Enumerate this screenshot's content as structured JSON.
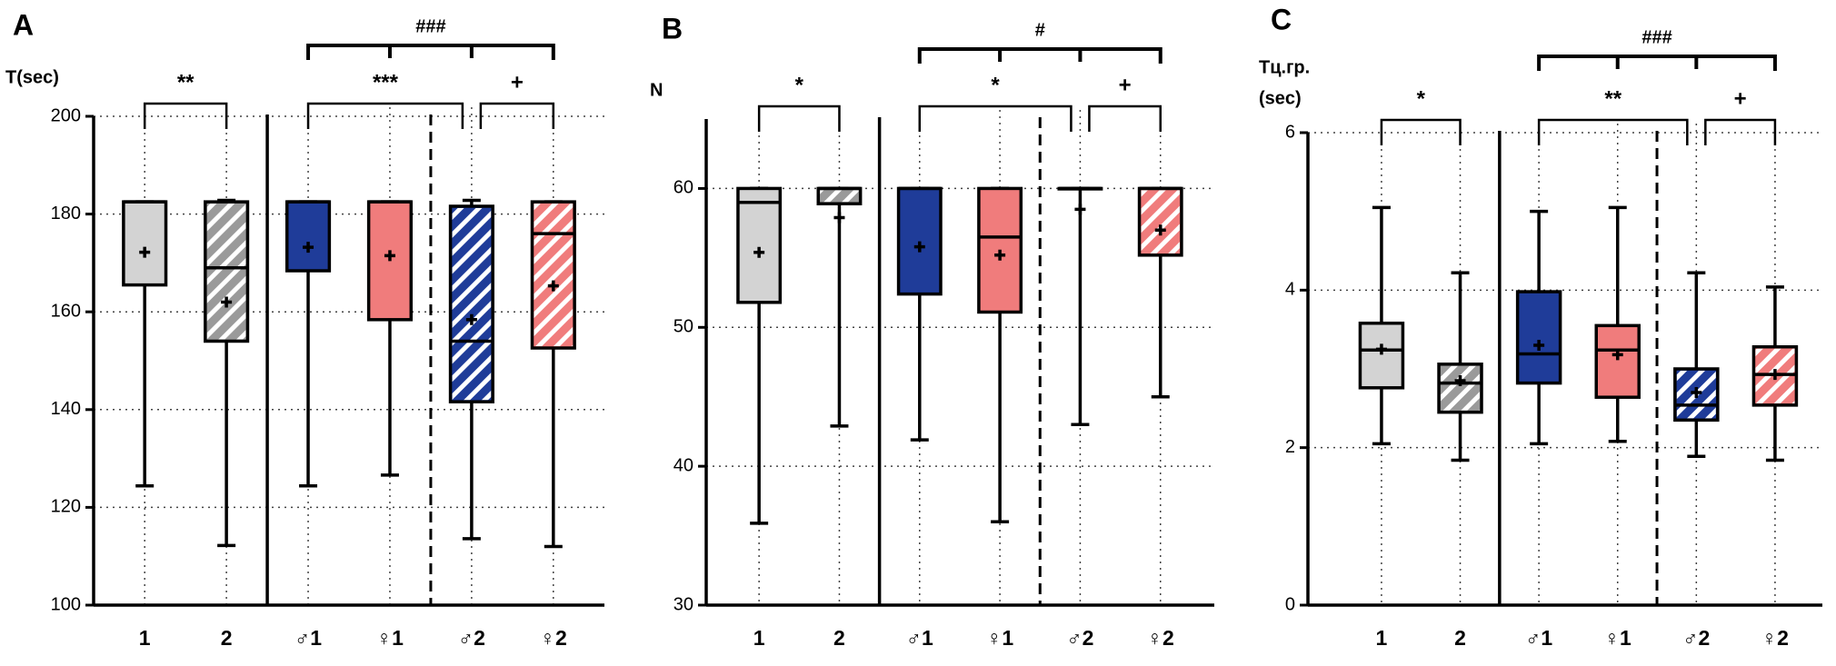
{
  "chart_data": [
    {
      "type": "box",
      "title": "A",
      "ylabel": "T(sec)",
      "categories": [
        "1",
        "2",
        "♂1",
        "♀1",
        "♂2",
        "♀2"
      ],
      "colors": [
        "#d3d3d3",
        "#9a9a9a",
        "#1f3c99",
        "#f07c7c",
        "#1f3c99",
        "#f07c7c"
      ],
      "hatched": [
        false,
        true,
        false,
        false,
        true,
        true
      ],
      "min": [
        124.4,
        112.2,
        124.4,
        126.6,
        113.6,
        112
      ],
      "q1": [
        165.5,
        154,
        168.4,
        158.4,
        141.6,
        152.6
      ],
      "median": [
        182.5,
        169,
        182.5,
        182.5,
        154,
        176
      ],
      "q3": [
        182.5,
        182.5,
        182.5,
        182.5,
        181.6,
        182.5
      ],
      "max": [
        182.5,
        182.8,
        182.5,
        182.5,
        182.8,
        182.5
      ],
      "mean": [
        172.2,
        162,
        173.2,
        171.5,
        158.4,
        165.3
      ],
      "ylim": [
        100,
        200
      ],
      "yticks": [
        100,
        120,
        140,
        160,
        180,
        200
      ],
      "grid": true,
      "annotations": [
        "**",
        "***",
        "+",
        "###"
      ]
    },
    {
      "type": "box",
      "title": "B",
      "ylabel": "N",
      "categories": [
        "1",
        "2",
        "♂1",
        "♀1",
        "♂2",
        "♀2"
      ],
      "colors": [
        "#d3d3d3",
        "#9a9a9a",
        "#1f3c99",
        "#f07c7c",
        "#1f3c99",
        "#f07c7c"
      ],
      "hatched": [
        false,
        true,
        false,
        false,
        true,
        true
      ],
      "min": [
        35.9,
        42.9,
        41.9,
        36,
        43,
        45
      ],
      "q1": [
        51.8,
        58.9,
        52.4,
        51.1,
        60,
        55.2
      ],
      "median": [
        59,
        60,
        60,
        56.5,
        60,
        60
      ],
      "q3": [
        60,
        60,
        60,
        60,
        60,
        60
      ],
      "max": [
        60,
        60,
        60,
        60,
        60,
        60
      ],
      "mean": [
        55.4,
        57.9,
        55.8,
        55.2,
        58.5,
        57
      ],
      "ylim": [
        30,
        65
      ],
      "yticks": [
        30,
        40,
        50,
        60
      ],
      "grid": true,
      "annotations": [
        "*",
        "*",
        "+",
        "#"
      ]
    },
    {
      "type": "box",
      "title": "C",
      "ylabel": [
        "Tц.гр.",
        "(sec)"
      ],
      "categories": [
        "1",
        "2",
        "♂1",
        "♀1",
        "♂2",
        "♀2"
      ],
      "colors": [
        "#d3d3d3",
        "#9a9a9a",
        "#1f3c99",
        "#f07c7c",
        "#1f3c99",
        "#f07c7c"
      ],
      "hatched": [
        false,
        true,
        false,
        false,
        true,
        true
      ],
      "min": [
        2.05,
        1.84,
        2.05,
        2.08,
        1.89,
        1.84
      ],
      "q1": [
        2.76,
        2.45,
        2.82,
        2.64,
        2.35,
        2.54
      ],
      "median": [
        3.24,
        2.82,
        3.19,
        3.24,
        2.54,
        2.93
      ],
      "q3": [
        3.58,
        3.06,
        3.98,
        3.55,
        3.0,
        3.28
      ],
      "max": [
        5.05,
        4.22,
        5.0,
        5.05,
        4.22,
        4.04
      ],
      "mean": [
        3.25,
        2.85,
        3.3,
        3.18,
        2.7,
        2.93
      ],
      "ylim": [
        0,
        6
      ],
      "yticks": [
        0,
        2,
        4,
        6
      ],
      "grid": true,
      "annotations": [
        "*",
        "**",
        "+",
        "###"
      ]
    }
  ]
}
